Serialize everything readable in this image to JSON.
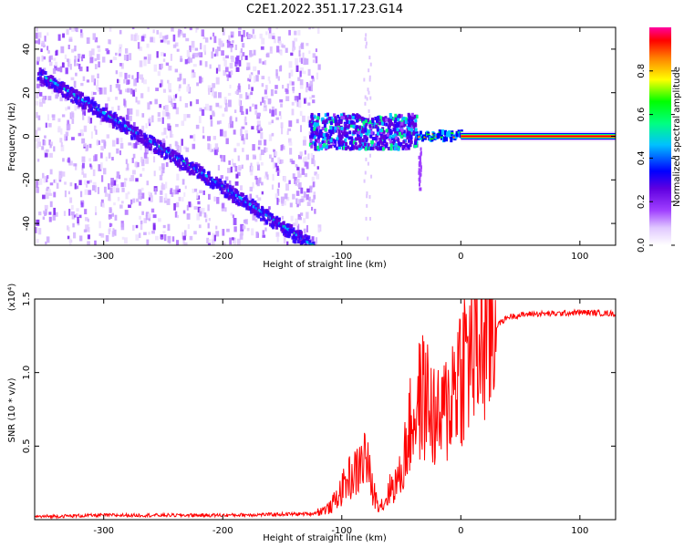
{
  "title": "C2E1.2022.351.17.23.G14",
  "colorbar": {
    "label": "Normalized spectral amplitude",
    "ticks": [
      "0.0",
      "0.2",
      "0.4",
      "0.6",
      "0.8"
    ],
    "colors": [
      "#ffffff",
      "#e0c8ff",
      "#a040ff",
      "#6000e0",
      "#0000ff",
      "#00c0ff",
      "#00ff80",
      "#00ff00",
      "#ffff00",
      "#ff8000",
      "#ff0000",
      "#ff00a0"
    ]
  },
  "chart_data": [
    {
      "type": "heatmap",
      "xlabel": "Height of straight line (km)",
      "ylabel": "Frequency (Hz)",
      "xlim": [
        -358,
        130
      ],
      "ylim": [
        -50,
        50
      ],
      "x_ticks": [
        "-300",
        "-200",
        "-100",
        "0",
        "100"
      ],
      "y_ticks": [
        "-40",
        "-20",
        "0",
        "20",
        "40"
      ],
      "features": {
        "diagonal_line": {
          "x": [
            -355,
            -220,
            -125
          ],
          "y": [
            29,
            -16,
            -50
          ]
        },
        "noise_region": {
          "x_range": [
            -358,
            -120
          ],
          "y_range": [
            -50,
            50
          ]
        },
        "transition_cluster": {
          "x_range": [
            -128,
            -38
          ],
          "y_range": [
            -6,
            10
          ]
        },
        "steady_line": {
          "x_range": [
            0,
            130
          ],
          "y": 0
        }
      }
    },
    {
      "type": "line",
      "xlabel": "Height of straight line (km)",
      "ylabel": "SNR (10 * v/v)",
      "y_multiplier": "(x10⁴)",
      "xlim": [
        -358,
        130
      ],
      "ylim": [
        0,
        1.5
      ],
      "x_ticks": [
        "-300",
        "-200",
        "-100",
        "0",
        "100"
      ],
      "y_ticks": [
        "0.5",
        "1.0",
        "1.5"
      ],
      "series": [
        {
          "color": "#ff0000",
          "x": [
            -358,
            -300,
            -200,
            -125,
            -110,
            -100,
            -95,
            -90,
            -85,
            -80,
            -75,
            -70,
            -65,
            -60,
            -55,
            -50,
            -45,
            -40,
            -35,
            -30,
            -25,
            -20,
            -15,
            -10,
            -5,
            0,
            10,
            20,
            30,
            40,
            60,
            80,
            100,
            130
          ],
          "y": [
            0.02,
            0.03,
            0.03,
            0.04,
            0.08,
            0.2,
            0.28,
            0.3,
            0.35,
            0.45,
            0.22,
            0.12,
            0.1,
            0.2,
            0.25,
            0.3,
            0.55,
            0.7,
            0.8,
            0.85,
            0.75,
            0.65,
            0.7,
            0.8,
            0.95,
            1.05,
            1.15,
            1.25,
            1.32,
            1.38,
            1.4,
            1.4,
            1.41,
            1.4
          ]
        }
      ]
    }
  ]
}
